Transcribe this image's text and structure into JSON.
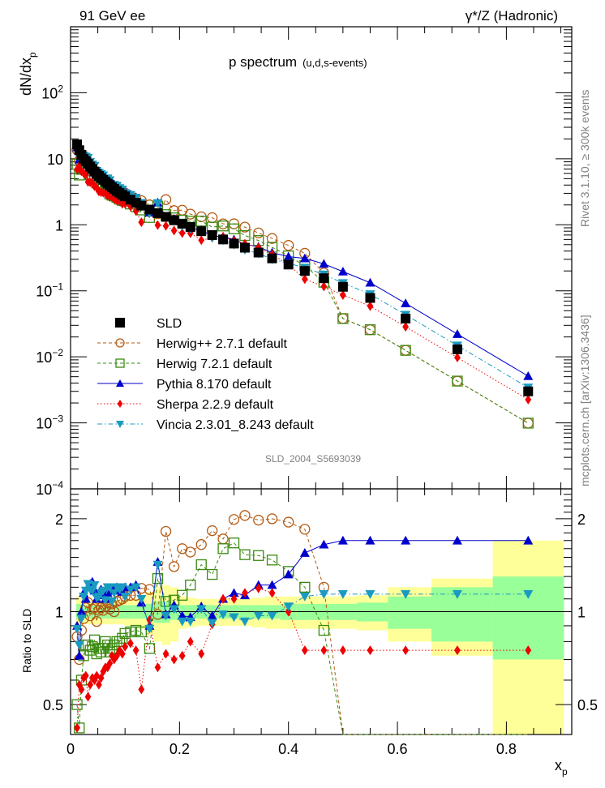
{
  "chart_data": {
    "type": "scatter",
    "title": "p spectrum",
    "subtitle": "(u,d,s-events)",
    "top_left_label": "91 GeV ee",
    "top_right_label": "γ*/Z (Hadronic)",
    "side_label_top": "Rivet 3.1.10, ≥ 300k events",
    "side_label_bottom": "mcplots.cern.ch [arXiv:1306.3436]",
    "analysis_id": "SLD_2004_S5693039",
    "xlabel": "x",
    "xlabel_sub": "p",
    "ylabel": "dN/dx",
    "ylabel_sub": "p",
    "ratio_ylabel": "Ratio to SLD",
    "xlim": [
      0,
      0.92
    ],
    "ylim_log": [
      0.0001,
      1000
    ],
    "ratio_ylim_log": [
      0.4,
      2.5
    ],
    "x_ticks": [
      "0",
      "0.2",
      "0.4",
      "0.6",
      "0.8"
    ],
    "x_tick_values": [
      0,
      0.2,
      0.4,
      0.6,
      0.8
    ],
    "y_ticks": [
      {
        "value": 100,
        "base": "10",
        "exp": "2"
      },
      {
        "value": 10,
        "base": "10",
        "exp": ""
      },
      {
        "value": 1,
        "base": "1",
        "exp": ""
      },
      {
        "value": 0.1,
        "base": "10",
        "exp": "−1"
      },
      {
        "value": 0.01,
        "base": "10",
        "exp": "−2"
      },
      {
        "value": 0.001,
        "base": "10",
        "exp": "−3"
      },
      {
        "value": 0.0001,
        "base": "10",
        "exp": "−4"
      }
    ],
    "ratio_ticks": [
      {
        "value": 2,
        "label": "2"
      },
      {
        "value": 1,
        "label": "1"
      },
      {
        "value": 0.5,
        "label": "0.5"
      }
    ],
    "legend_position": "bottom-left",
    "x": [
      0.012,
      0.016,
      0.02,
      0.024,
      0.028,
      0.032,
      0.036,
      0.04,
      0.044,
      0.048,
      0.052,
      0.056,
      0.06,
      0.064,
      0.068,
      0.072,
      0.076,
      0.08,
      0.085,
      0.09,
      0.095,
      0.1,
      0.11,
      0.12,
      0.13,
      0.145,
      0.16,
      0.175,
      0.19,
      0.205,
      0.22,
      0.24,
      0.26,
      0.28,
      0.3,
      0.32,
      0.345,
      0.37,
      0.4,
      0.43,
      0.465,
      0.5,
      0.55,
      0.615,
      0.71,
      0.84
    ],
    "reference": {
      "name": "SLD",
      "color": "#000000",
      "marker": "square",
      "values": [
        16.5,
        13.5,
        11.5,
        10.0,
        9.2,
        8.4,
        7.6,
        7.0,
        6.4,
        5.9,
        5.5,
        5.1,
        4.8,
        4.5,
        4.2,
        3.95,
        3.7,
        3.5,
        3.25,
        3.05,
        2.85,
        2.7,
        2.4,
        2.15,
        1.95,
        1.7,
        1.5,
        1.32,
        1.17,
        1.04,
        0.93,
        0.8,
        0.7,
        0.6,
        0.52,
        0.45,
        0.38,
        0.31,
        0.25,
        0.2,
        0.155,
        0.115,
        0.078,
        0.038,
        0.013,
        0.003
      ],
      "band_inner": [
        0.06,
        0.06,
        0.05,
        0.05,
        0.05,
        0.05,
        0.05,
        0.05,
        0.05,
        0.05,
        0.05,
        0.05,
        0.05,
        0.05,
        0.05,
        0.05,
        0.05,
        0.05,
        0.05,
        0.05,
        0.05,
        0.05,
        0.05,
        0.05,
        0.05,
        0.06,
        0.08,
        0.08,
        0.06,
        0.05,
        0.05,
        0.05,
        0.05,
        0.05,
        0.05,
        0.05,
        0.05,
        0.05,
        0.06,
        0.06,
        0.06,
        0.06,
        0.07,
        0.12,
        0.2,
        0.3
      ],
      "band_outer": [
        0.12,
        0.12,
        0.1,
        0.09,
        0.09,
        0.09,
        0.09,
        0.09,
        0.09,
        0.09,
        0.09,
        0.09,
        0.09,
        0.09,
        0.09,
        0.09,
        0.09,
        0.09,
        0.09,
        0.09,
        0.09,
        0.1,
        0.1,
        0.1,
        0.12,
        0.16,
        0.2,
        0.22,
        0.2,
        0.12,
        0.11,
        0.1,
        0.1,
        0.1,
        0.1,
        0.1,
        0.11,
        0.12,
        0.12,
        0.12,
        0.12,
        0.12,
        0.13,
        0.2,
        0.28,
        0.7
      ]
    },
    "series": [
      {
        "name": "Herwig++ 2.7.1 default",
        "color": "#b35a13",
        "marker": "open-circle",
        "line": "dashed",
        "ratio": [
          0.83,
          0.7,
          0.87,
          0.95,
          1.03,
          1.07,
          0.97,
          1.02,
          1.03,
          0.93,
          1.01,
          1.03,
          1.01,
          1.04,
          1.07,
          1.02,
          1.06,
          1.0,
          1.08,
          1.09,
          1.1,
          1.12,
          1.13,
          1.13,
          1.19,
          1.18,
          0.98,
          1.82,
          1.4,
          1.6,
          1.56,
          1.65,
          1.83,
          1.72,
          1.99,
          2.05,
          1.98,
          2.0,
          1.95,
          1.85,
          1.2,
          0.33,
          0.33,
          0.33,
          0.33,
          0.33
        ]
      },
      {
        "name": "Herwig 7.2.1 default",
        "color": "#3a8a10",
        "marker": "open-square",
        "line": "dashed",
        "ratio": [
          0.5,
          0.42,
          0.6,
          0.72,
          0.78,
          0.78,
          0.75,
          0.77,
          0.81,
          0.73,
          0.76,
          0.74,
          0.76,
          0.8,
          0.78,
          0.74,
          0.76,
          0.78,
          0.8,
          0.8,
          0.82,
          0.85,
          0.86,
          0.87,
          0.86,
          0.76,
          1.28,
          1.08,
          1.09,
          1.13,
          1.22,
          1.42,
          1.32,
          1.6,
          1.67,
          1.53,
          1.52,
          1.47,
          1.35,
          1.2,
          0.87,
          0.33,
          0.33,
          0.33,
          0.33,
          0.33
        ]
      },
      {
        "name": "Pythia 8.170 default",
        "color": "#0000cc",
        "marker": "triangle-up",
        "line": "solid",
        "ratio": [
          0.9,
          0.72,
          1.0,
          1.15,
          1.1,
          1.2,
          1.23,
          1.25,
          1.17,
          1.1,
          1.15,
          1.18,
          1.13,
          1.1,
          1.15,
          1.17,
          1.19,
          1.17,
          1.2,
          1.18,
          1.16,
          1.2,
          1.2,
          1.22,
          1.07,
          0.9,
          1.45,
          0.98,
          1.05,
          0.97,
          0.96,
          1.04,
          0.97,
          1.1,
          1.15,
          1.13,
          1.22,
          1.22,
          1.32,
          1.55,
          1.65,
          1.7,
          1.7,
          1.7,
          1.7,
          1.7
        ]
      },
      {
        "name": "Sherpa 2.2.9 default",
        "color": "#ee0000",
        "marker": "diamond",
        "line": "dotted",
        "ratio": [
          0.42,
          0.58,
          0.56,
          0.61,
          0.62,
          0.53,
          0.58,
          0.61,
          0.6,
          0.62,
          0.58,
          0.61,
          0.64,
          0.66,
          0.66,
          0.68,
          0.72,
          0.7,
          0.72,
          0.75,
          0.73,
          0.77,
          0.79,
          0.75,
          0.56,
          0.94,
          0.66,
          0.73,
          0.7,
          0.72,
          0.8,
          0.73,
          0.91,
          1.1,
          1.1,
          1.15,
          1.19,
          1.15,
          1.0,
          0.75,
          0.75,
          0.75,
          0.75,
          0.75,
          0.75,
          0.75
        ]
      },
      {
        "name": "Vincia 2.3.01_8.243 default",
        "color": "#1a9ac0",
        "marker": "triangle-down",
        "line": "dash-dot",
        "ratio": [
          0.88,
          0.78,
          0.95,
          1.12,
          1.17,
          1.23,
          1.18,
          1.17,
          1.22,
          1.11,
          1.12,
          1.15,
          1.17,
          1.09,
          1.2,
          1.2,
          1.08,
          1.15,
          1.2,
          1.18,
          1.2,
          1.12,
          1.18,
          1.2,
          1.1,
          0.88,
          1.42,
          0.97,
          1.02,
          0.93,
          0.93,
          1.02,
          0.92,
          0.98,
          0.96,
          0.93,
          0.97,
          0.97,
          1.04,
          1.12,
          1.14,
          1.14,
          1.14,
          1.14,
          1.14,
          1.14
        ]
      }
    ],
    "ratio_x": [
      0.012,
      0.016,
      0.02,
      0.024,
      0.028,
      0.032,
      0.036,
      0.04,
      0.044,
      0.048,
      0.052,
      0.056,
      0.06,
      0.064,
      0.068,
      0.072,
      0.076,
      0.08,
      0.085,
      0.09,
      0.095,
      0.1,
      0.11,
      0.12,
      0.13,
      0.145,
      0.16,
      0.175,
      0.19,
      0.205,
      0.22,
      0.24,
      0.26,
      0.28,
      0.3,
      0.32,
      0.345,
      0.37,
      0.4,
      0.43,
      0.465,
      0.5,
      0.55,
      0.615,
      0.71,
      0.84
    ]
  }
}
